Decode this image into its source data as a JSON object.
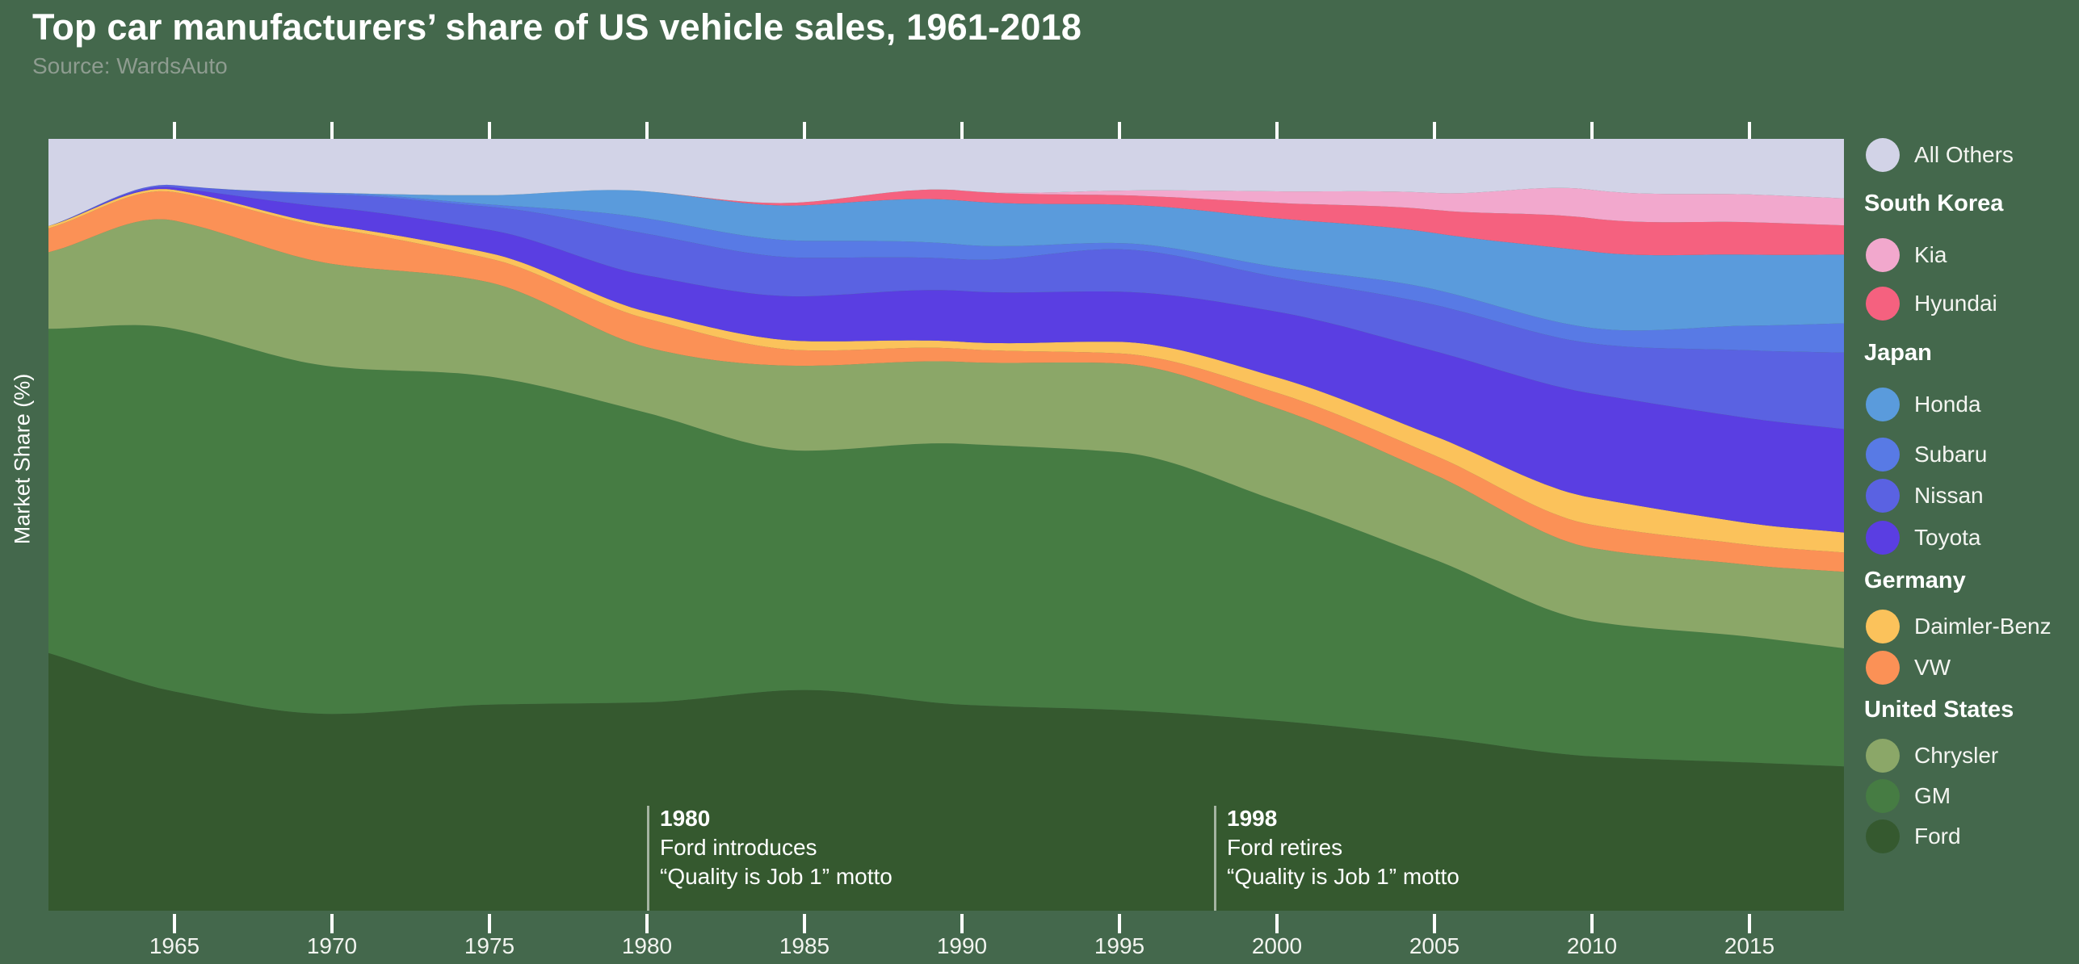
{
  "page": {
    "title": "Top car manufacturers’ share of US vehicle sales, 1961-2018",
    "source": "Source: WardsAuto"
  },
  "y_axis": {
    "label": "Market Share (%)"
  },
  "x_axis": {
    "ticks": [
      1965,
      1970,
      1975,
      1980,
      1985,
      1990,
      1995,
      2000,
      2005,
      2010,
      2015
    ]
  },
  "annotations": [
    {
      "year": 1980,
      "title": "1980",
      "line1": "Ford introduces",
      "line2": "“Quality is Job 1” motto"
    },
    {
      "year": 1998,
      "title": "1998",
      "line1": "Ford retires",
      "line2": "“Quality is Job 1” motto"
    }
  ],
  "legend": {
    "entries": [
      {
        "type": "item",
        "label": "All Others",
        "color": "#D2D3E7"
      },
      {
        "type": "header",
        "label": "South Korea"
      },
      {
        "type": "item",
        "label": "Kia",
        "color": "#F2A8CD"
      },
      {
        "type": "item",
        "label": "Hyundai",
        "color": "#F5617F"
      },
      {
        "type": "header",
        "label": "Japan"
      },
      {
        "type": "item",
        "label": "Honda",
        "color": "#5A9BDC"
      },
      {
        "type": "item",
        "label": "Subaru",
        "color": "#587AE5"
      },
      {
        "type": "item",
        "label": "Nissan",
        "color": "#5A62E2"
      },
      {
        "type": "item",
        "label": "Toyota",
        "color": "#5A3EE2"
      },
      {
        "type": "header",
        "label": "Germany"
      },
      {
        "type": "item",
        "label": "Daimler-Benz",
        "color": "#FBC25B"
      },
      {
        "type": "item",
        "label": "VW",
        "color": "#FB9156"
      },
      {
        "type": "header",
        "label": "United States"
      },
      {
        "type": "item",
        "label": "Chrysler",
        "color": "#8BA768"
      },
      {
        "type": "item",
        "label": "GM",
        "color": "#467C43"
      },
      {
        "type": "item",
        "label": "Ford",
        "color": "#35592F"
      }
    ]
  },
  "chart_data": {
    "type": "area",
    "stacking": "percent",
    "title": "Top car manufacturers’ share of US vehicle sales, 1961-2018",
    "xlabel": "",
    "ylabel": "Market Share (%)",
    "x_range": [
      1961,
      2018
    ],
    "ylim": [
      0,
      100
    ],
    "grid": false,
    "legend_position": "right",
    "x": [
      1961,
      1965,
      1970,
      1975,
      1980,
      1985,
      1990,
      1995,
      2000,
      2005,
      2010,
      2015,
      2018
    ],
    "series": [
      {
        "name": "Ford",
        "color": "#35592F",
        "values": [
          33.4,
          28.4,
          25.5,
          26.7,
          27.0,
          28.6,
          26.7,
          26.0,
          24.6,
          22.5,
          20.0,
          19.2,
          18.7
        ]
      },
      {
        "name": "GM",
        "color": "#467C43",
        "values": [
          42.0,
          47.0,
          45.0,
          42.5,
          37.5,
          31.0,
          33.8,
          33.4,
          28.5,
          23.0,
          17.5,
          16.3,
          15.3
        ]
      },
      {
        "name": "Chrysler",
        "color": "#8BA768",
        "values": [
          9.9,
          14.0,
          13.3,
          12.2,
          8.5,
          11.0,
          10.6,
          11.5,
          12.0,
          11.0,
          9.5,
          9.3,
          9.9
        ]
      },
      {
        "name": "VW",
        "color": "#FB9156",
        "values": [
          3.1,
          3.7,
          4.6,
          3.1,
          3.7,
          2.0,
          1.7,
          1.3,
          2.0,
          2.5,
          3.0,
          2.6,
          2.5
        ]
      },
      {
        "name": "Daimler-Benz",
        "color": "#FBC25B",
        "values": [
          0.3,
          0.3,
          0.4,
          0.7,
          0.9,
          1.2,
          0.9,
          1.5,
          2.0,
          2.5,
          3.5,
          2.8,
          2.6
        ]
      },
      {
        "name": "Toyota",
        "color": "#5A3EE2",
        "values": [
          0,
          0.3,
          2.3,
          3.0,
          4.7,
          5.8,
          6.6,
          6.5,
          8.5,
          11.0,
          13.5,
          13.6,
          13.4
        ]
      },
      {
        "name": "Nissan",
        "color": "#5A62E2",
        "values": [
          0,
          0.3,
          1.7,
          3.0,
          5.4,
          5.0,
          4.1,
          5.5,
          4.5,
          6.0,
          6.5,
          8.8,
          9.9
        ]
      },
      {
        "name": "Subaru",
        "color": "#587AE5",
        "values": [
          0,
          0,
          0.2,
          0.3,
          2.0,
          2.2,
          1.9,
          0.8,
          1.3,
          2.0,
          2.0,
          3.2,
          3.8
        ]
      },
      {
        "name": "Honda",
        "color": "#5A9BDC",
        "values": [
          0,
          0,
          0,
          1.2,
          3.5,
          4.6,
          5.7,
          5.0,
          6.3,
          7.3,
          9.9,
          9.2,
          8.9
        ]
      },
      {
        "name": "Hyundai",
        "color": "#F5617F",
        "values": [
          0,
          0,
          0,
          0,
          0,
          0.4,
          1.3,
          1.2,
          2.0,
          3.0,
          4.3,
          4.2,
          3.8
        ]
      },
      {
        "name": "Kia",
        "color": "#F2A8CD",
        "values": [
          0,
          0,
          0,
          0,
          0,
          0,
          0,
          0.6,
          1.5,
          2.2,
          3.7,
          3.6,
          3.5
        ]
      },
      {
        "name": "All Others",
        "color": "#D2D3E7",
        "values": [
          11.3,
          6.0,
          7.0,
          7.3,
          6.8,
          8.2,
          6.7,
          6.7,
          6.8,
          7.0,
          6.6,
          7.2,
          7.7
        ]
      }
    ]
  },
  "colors": {
    "background": "#44684C",
    "annotation_line": "rgba(255,255,255,0.55)",
    "tick": "#FFFFFF"
  }
}
